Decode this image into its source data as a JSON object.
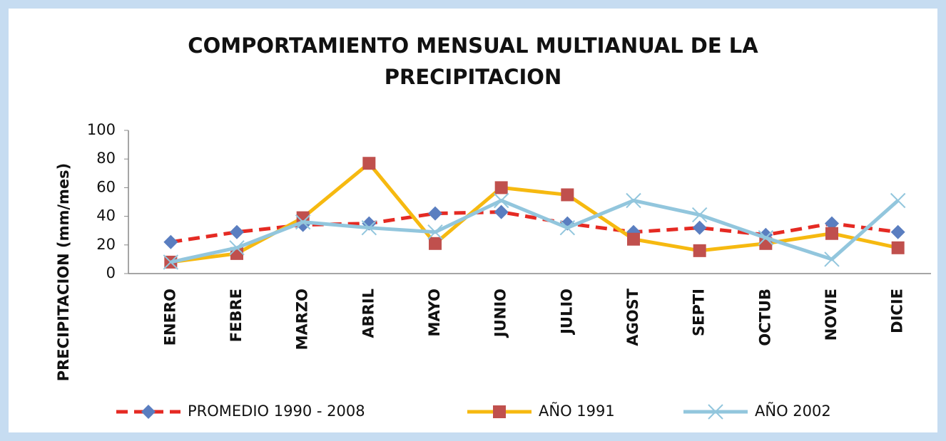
{
  "chart_data": {
    "type": "line",
    "title": "COMPORTAMIENTO MENSUAL MULTIANUAL DE LA PRECIPITACION",
    "y_label": "PRECIPITACION  (mm/mes)",
    "categories": [
      "ENERO",
      "FEBRE",
      "MARZO",
      "ABRIL",
      "MAYO",
      "JUNIO",
      "JULIO",
      "AGOST",
      "SEPTI",
      "OCTUB",
      "NOVIE",
      "DICIE"
    ],
    "series": [
      {
        "name": "PROMEDIO 1990 - 2008",
        "color": "#e52a23",
        "marker": "diamond",
        "marker_color": "#5a7ec0",
        "dash": true,
        "values": [
          22,
          29,
          34,
          35,
          42,
          43,
          35,
          29,
          32,
          27,
          35,
          29
        ]
      },
      {
        "name": "AÑO 1991",
        "color": "#f6b910",
        "marker": "square",
        "marker_color": "#c0504d",
        "dash": false,
        "values": [
          8,
          14,
          39,
          77,
          21,
          60,
          55,
          24,
          16,
          21,
          28,
          18
        ]
      },
      {
        "name": "AÑO 2002",
        "color": "#92c6dd",
        "marker": "x",
        "marker_color": "#92c6dd",
        "dash": false,
        "values": [
          8,
          18,
          36,
          32,
          29,
          51,
          32,
          51,
          41,
          25,
          10,
          51
        ]
      }
    ],
    "ylim": [
      0,
      100
    ],
    "yticks": [
      0,
      20,
      40,
      60,
      80,
      100
    ],
    "grid": false,
    "legend": "bottom"
  }
}
